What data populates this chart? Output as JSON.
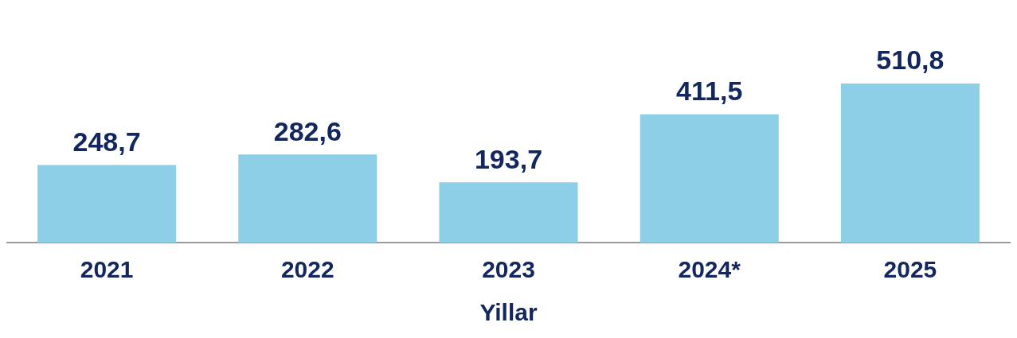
{
  "chart_data": {
    "type": "bar",
    "xlabel": "Yillar",
    "categories": [
      "2021",
      "2022",
      "2023",
      "2024*",
      "2025"
    ],
    "values": [
      248.7,
      282.6,
      193.7,
      411.5,
      510.8
    ],
    "value_labels": [
      "248,7",
      "282,6",
      "193,7",
      "411,5",
      "510,8"
    ],
    "color": "#8ccfe6",
    "grid": false,
    "legend": false
  }
}
